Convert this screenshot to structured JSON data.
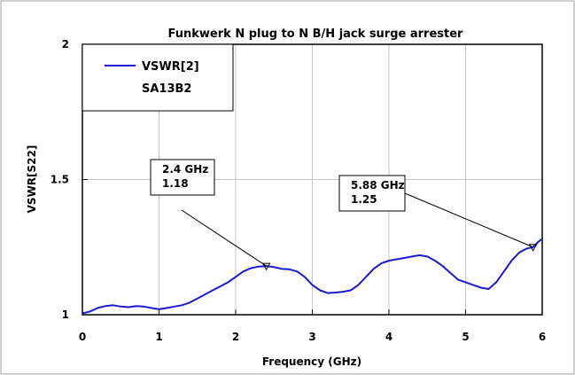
{
  "chart_data": {
    "type": "line",
    "title": "Funkwerk N plug to N B/H jack surge arrester",
    "xlabel": "Frequency (GHz)",
    "ylabel": "VSWR[S22]",
    "xlim": [
      0,
      6
    ],
    "ylim": [
      1,
      2
    ],
    "xticks": [
      "0",
      "1",
      "2",
      "3",
      "4",
      "5",
      "6"
    ],
    "yticks": [
      "1",
      "1.5",
      "2"
    ],
    "grid": true,
    "legend_position": "top-left",
    "colors": {
      "series": "#1a1ad6",
      "grid": "#c8c8c8"
    },
    "series": [
      {
        "name": "VSWR[2]",
        "label": "SA13B2",
        "x": [
          0,
          0.1,
          0.2,
          0.3,
          0.4,
          0.5,
          0.6,
          0.7,
          0.8,
          0.9,
          1.0,
          1.1,
          1.2,
          1.3,
          1.4,
          1.5,
          1.6,
          1.7,
          1.8,
          1.9,
          2.0,
          2.1,
          2.2,
          2.3,
          2.4,
          2.5,
          2.6,
          2.7,
          2.8,
          2.9,
          3.0,
          3.1,
          3.2,
          3.3,
          3.4,
          3.5,
          3.6,
          3.7,
          3.8,
          3.9,
          4.0,
          4.1,
          4.2,
          4.3,
          4.4,
          4.5,
          4.6,
          4.7,
          4.8,
          4.9,
          5.0,
          5.1,
          5.2,
          5.3,
          5.4,
          5.5,
          5.6,
          5.7,
          5.8,
          5.88,
          5.95,
          6.0
        ],
        "values": [
          1.005,
          1.012,
          1.025,
          1.032,
          1.035,
          1.03,
          1.028,
          1.032,
          1.03,
          1.025,
          1.02,
          1.025,
          1.03,
          1.035,
          1.045,
          1.06,
          1.075,
          1.09,
          1.105,
          1.12,
          1.14,
          1.16,
          1.172,
          1.178,
          1.18,
          1.176,
          1.17,
          1.168,
          1.16,
          1.14,
          1.11,
          1.09,
          1.08,
          1.082,
          1.085,
          1.09,
          1.11,
          1.14,
          1.17,
          1.19,
          1.2,
          1.205,
          1.21,
          1.215,
          1.22,
          1.215,
          1.2,
          1.18,
          1.155,
          1.13,
          1.12,
          1.11,
          1.1,
          1.095,
          1.12,
          1.16,
          1.2,
          1.23,
          1.245,
          1.25,
          1.27,
          1.28
        ]
      }
    ],
    "markers": [
      {
        "line1": "2.4 GHz",
        "line2": "1.18",
        "x": 2.4,
        "y": 1.18
      },
      {
        "line1": "5.88 GHz",
        "line2": "1.25",
        "x": 5.88,
        "y": 1.25
      }
    ]
  }
}
